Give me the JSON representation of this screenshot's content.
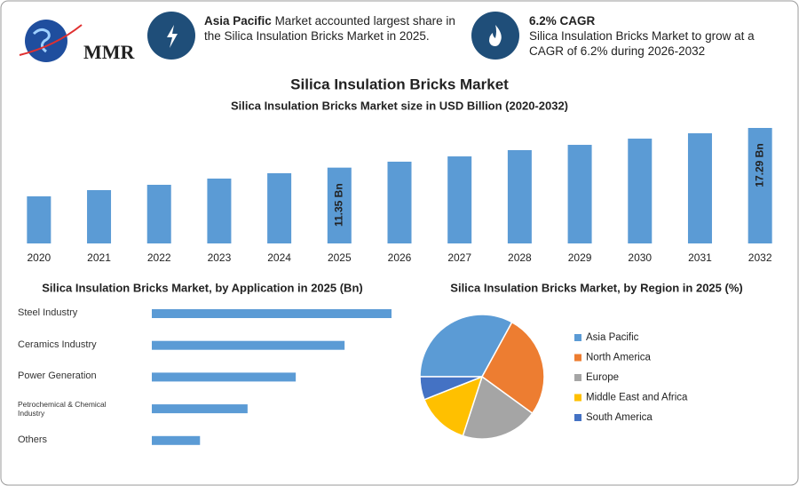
{
  "header": {
    "logo": "MMR",
    "highlight": "Asia Pacific",
    "highlight_text": "Market accounted largest share in the Silica Insulation Bricks Market in 2025.",
    "cagr_title": "6.2% CAGR",
    "cagr_text": "Silica Insulation Bricks Market to grow at a CAGR of 6.2% during 2026-2032"
  },
  "chart_data": [
    {
      "type": "bar",
      "title": "Silica Insulation Bricks Market",
      "subtitle": "Silica Insulation Bricks Market size in USD Billion (2020-2032)",
      "categories": [
        "2020",
        "2021",
        "2022",
        "2023",
        "2024",
        "2025",
        "2026",
        "2027",
        "2028",
        "2029",
        "2030",
        "2031",
        "2032"
      ],
      "values": [
        7.05,
        7.98,
        8.78,
        9.71,
        10.51,
        11.35,
        12.24,
        13.03,
        13.97,
        14.76,
        15.69,
        16.49,
        17.29
      ],
      "value_labels": [
        null,
        null,
        null,
        null,
        null,
        "11.35 Bn",
        null,
        null,
        null,
        null,
        null,
        null,
        "17.29 Bn"
      ],
      "color": "#5b9bd5"
    },
    {
      "type": "horizontal_bar",
      "title": "Silica Insulation Bricks Market, by Application in 2025 (Bn)",
      "categories": [
        "Steel Industry",
        "Ceramics Industry",
        "Power Generation",
        "Petrochemical & Chemical Industry",
        "Others"
      ],
      "values": [
        3.78,
        3.04,
        2.27,
        1.51,
        0.76
      ],
      "color": "#5b9bd5"
    },
    {
      "type": "pie",
      "title": "Silica Insulation Bricks Market, by Region in 2025 (%)",
      "categories": [
        "Asia Pacific",
        "North America",
        "Europe",
        "Middle East and Africa",
        "South America"
      ],
      "values": [
        33,
        27,
        20,
        14,
        6
      ],
      "colors": [
        "#5b9bd5",
        "#ed7d31",
        "#a5a5a5",
        "#ffc000",
        "#4472c4"
      ]
    }
  ]
}
